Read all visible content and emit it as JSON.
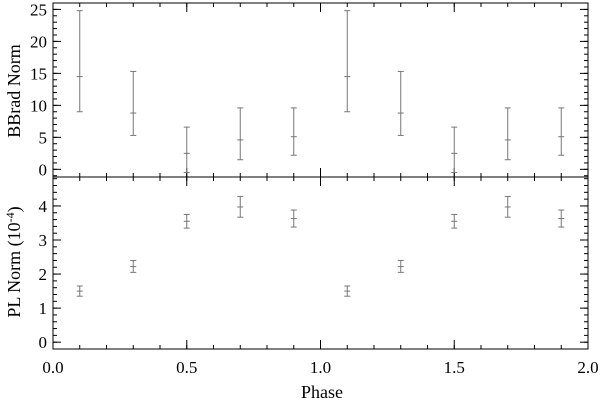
{
  "chart_data": [
    {
      "type": "scatter",
      "panel": "top",
      "ylabel": "BBrad Norm",
      "xlabel": "",
      "xlim": [
        0.0,
        2.0
      ],
      "ylim": [
        -1.2,
        26
      ],
      "yticks": [
        0,
        5,
        10,
        15,
        20,
        25
      ],
      "ytick_labels": [
        "0",
        "5",
        "10",
        "15",
        "20",
        "25"
      ],
      "series": [
        {
          "x": [
            0.1,
            0.3,
            0.5,
            0.7,
            0.9,
            1.1,
            1.3,
            1.5,
            1.7,
            1.9
          ],
          "y": [
            14.5,
            8.8,
            2.5,
            4.6,
            5.1,
            14.5,
            8.8,
            2.5,
            4.6,
            5.1
          ],
          "err_low": [
            9.0,
            5.3,
            -0.5,
            1.5,
            2.2,
            9.0,
            5.3,
            -0.5,
            1.5,
            2.2
          ],
          "err_high": [
            24.8,
            15.3,
            6.6,
            9.6,
            9.6,
            24.8,
            15.3,
            6.6,
            9.6,
            9.6
          ]
        }
      ]
    },
    {
      "type": "scatter",
      "panel": "bottom",
      "ylabel": "PL Norm (10",
      "ylabel_sup": "-4",
      "ylabel_end": ")",
      "xlabel": "Phase",
      "xlim": [
        0.0,
        2.0
      ],
      "ylim": [
        -0.2,
        4.85
      ],
      "yticks": [
        0,
        1,
        2,
        3,
        4
      ],
      "ytick_labels": [
        "0",
        "1",
        "2",
        "3",
        "4"
      ],
      "xticks": [
        0.0,
        0.5,
        1.0,
        1.5,
        2.0
      ],
      "xtick_labels": [
        "0.0",
        "0.5",
        "1.0",
        "1.5",
        "2.0"
      ],
      "series": [
        {
          "x": [
            0.1,
            0.3,
            0.5,
            0.7,
            0.9,
            1.1,
            1.3,
            1.5,
            1.7,
            1.9
          ],
          "y": [
            1.5,
            2.22,
            3.55,
            3.97,
            3.63,
            1.5,
            2.22,
            3.55,
            3.97,
            3.63
          ],
          "err_low": [
            1.35,
            2.05,
            3.35,
            3.67,
            3.38,
            1.35,
            2.05,
            3.35,
            3.67,
            3.38
          ],
          "err_high": [
            1.65,
            2.4,
            3.75,
            4.28,
            3.88,
            1.65,
            2.4,
            3.75,
            4.28,
            3.88
          ]
        }
      ]
    }
  ]
}
